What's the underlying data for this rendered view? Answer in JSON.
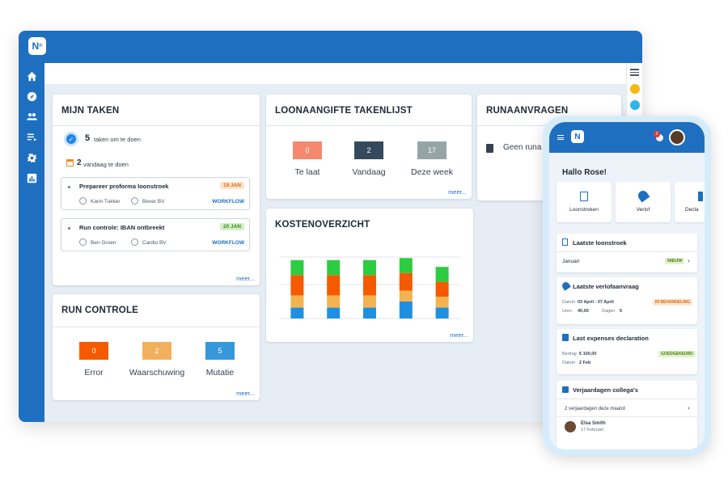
{
  "colors": {
    "brand": "#1e6fc0",
    "red": "#f26b4f",
    "navy": "#34495e",
    "gray": "#95a5a6",
    "error": "#f55a00",
    "warn": "#f2b05c",
    "mutatie": "#3598db",
    "green": "#2ecc40",
    "orange": "#f55a00",
    "lightorange": "#f4b34f",
    "blue": "#1f90e0"
  },
  "app": {
    "logo": "N"
  },
  "sidebar_icons": [
    "home-icon",
    "compass-icon",
    "users-icon",
    "list-icon",
    "gear-icon",
    "chart-icon"
  ],
  "mijn_taken": {
    "title": "MIJN TAKEN",
    "todo_count": "5",
    "todo_text": "taken om te doen",
    "today_count": "2",
    "today_text": "vandaag te doen",
    "tasks": [
      {
        "title": "Prepareer proforma loonstroek",
        "date": "19 JAN",
        "person": "Karin Tukker",
        "company": "Bever BV",
        "type": "WORKFLOW"
      },
      {
        "title": "Run controle: IBAN ontbreekt",
        "date": "20 JAN",
        "person": "Ben Groen",
        "company": "Cardio BV",
        "type": "WORKFLOW"
      }
    ],
    "more": "meer..."
  },
  "loonaangifte": {
    "title": "LOONAANGIFTE TAKENLIJST",
    "stats": [
      {
        "value": "0",
        "label": "Te laat"
      },
      {
        "value": "2",
        "label": "Vandaag"
      },
      {
        "value": "17",
        "label": "Deze week"
      }
    ],
    "more": "meer..."
  },
  "runaanvragen": {
    "title": "RUNAANVRAGEN",
    "item": "Geen runa"
  },
  "run_controle": {
    "title": "RUN CONTROLE",
    "stats": [
      {
        "value": "0",
        "label": "Error"
      },
      {
        "value": "2",
        "label": "Waarschuwing"
      },
      {
        "value": "5",
        "label": "Mutatie"
      }
    ],
    "more": "meer..."
  },
  "kosten": {
    "title": "KOSTENOVERZICHT",
    "more": "meer..."
  },
  "chart_data": {
    "type": "bar",
    "stacked": true,
    "categories": [
      "",
      "",
      "",
      "",
      ""
    ],
    "series": [
      {
        "color": "#1f90e0",
        "values": [
          16,
          16,
          16,
          25,
          16
        ]
      },
      {
        "color": "#f4b34f",
        "values": [
          18,
          18,
          18,
          16,
          16
        ]
      },
      {
        "color": "#f55a00",
        "values": [
          30,
          30,
          30,
          26,
          22
        ]
      },
      {
        "color": "#2ecc40",
        "values": [
          22,
          22,
          22,
          22,
          22
        ]
      }
    ]
  },
  "phone": {
    "logo": "N",
    "notifications": "2",
    "greeting": "Hallo Rose!",
    "tiles": [
      {
        "icon": "payslip-icon",
        "label": "Loonstroken"
      },
      {
        "icon": "umbrella-icon",
        "label": "Verlof"
      },
      {
        "icon": "declaration-icon",
        "label": "Decla"
      }
    ],
    "payslip": {
      "title": "Laatste loonstroek",
      "month": "Januari",
      "badge": "NIEUW"
    },
    "leave": {
      "title": "Laatste verlofaanvraag",
      "date_label": "Datum",
      "date": "03 April - 07 April",
      "hours_label": "Uren",
      "hours": "40,00",
      "days_label": "Dagen",
      "days": "5",
      "badge": "IN BEHANDELING"
    },
    "expenses": {
      "title": "Last expenses declaration",
      "amount_label": "Bedrag",
      "amount": "€ 100,00",
      "date_label": "Datum",
      "date": "2 Feb",
      "badge": "GOEDGEKEURD"
    },
    "birthdays": {
      "title": "Verjaardagen collega's",
      "count_text": "2 verjaardagen deze maand",
      "name": "Elsa Smith",
      "date": "17 Februari"
    }
  }
}
